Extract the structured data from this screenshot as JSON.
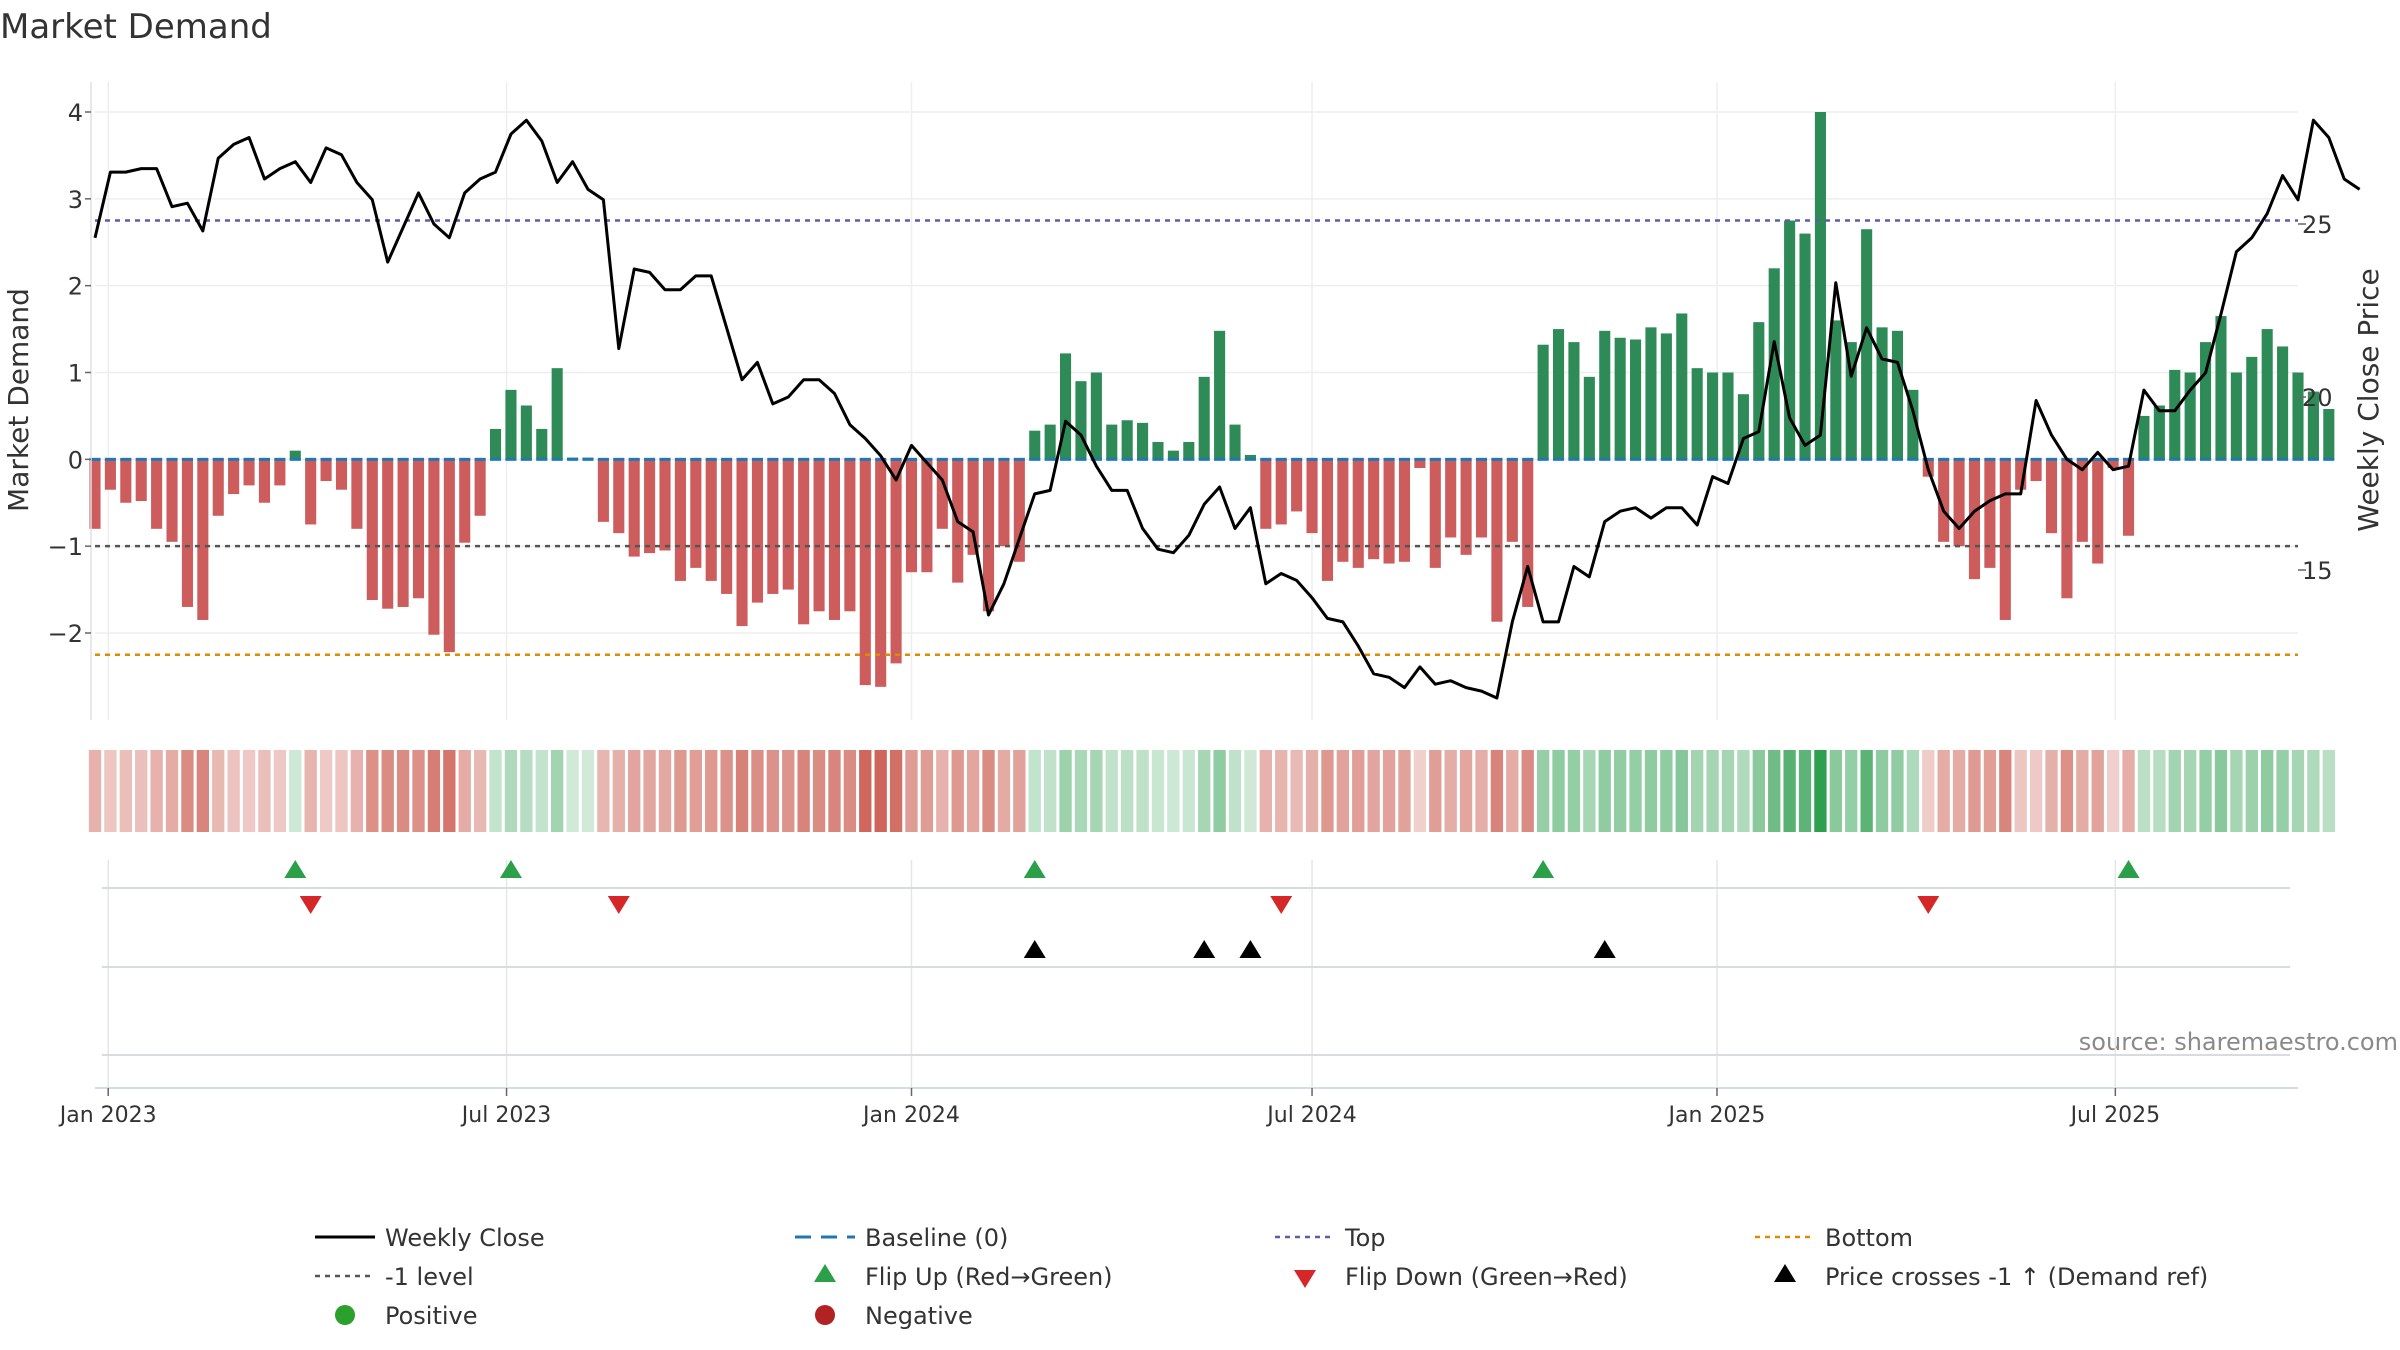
{
  "chart_data": {
    "type": "bar",
    "title": "Market Demand",
    "ylabel_left": "Market Demand",
    "ylabel_right": "Weekly Close Price",
    "source": "source: sharemaestro.com",
    "x_start": "2022-12-26",
    "x_end": "2025-09-22",
    "ylim_left": [
      -3,
      4
    ],
    "ylim_right": [
      10.5,
      28.6
    ],
    "yticks_left": [
      {
        "v": 4,
        "label": "4"
      },
      {
        "v": 3,
        "label": "3"
      },
      {
        "v": 2,
        "label": "2"
      },
      {
        "v": 1,
        "label": "1"
      },
      {
        "v": 0,
        "label": "0"
      },
      {
        "v": -1,
        "label": "−1"
      },
      {
        "v": -2,
        "label": "−2"
      }
    ],
    "yticks_right": [
      {
        "v": 25,
        "label": "25"
      },
      {
        "v": 20,
        "label": "20"
      },
      {
        "v": 15,
        "label": "15"
      }
    ],
    "xticks": [
      {
        "date": "2023-01-01",
        "label": "Jan 2023"
      },
      {
        "date": "2023-07-01",
        "label": "Jul 2023"
      },
      {
        "date": "2024-01-01",
        "label": "Jan 2024"
      },
      {
        "date": "2024-07-01",
        "label": "Jul 2024"
      },
      {
        "date": "2025-01-01",
        "label": "Jan 2025"
      },
      {
        "date": "2025-07-01",
        "label": "Jul 2025"
      }
    ],
    "levels": {
      "top": 2.75,
      "minus_one": -1,
      "bottom": -2.25,
      "baseline": 0
    },
    "colors": {
      "positive_bar": "#2e8b57",
      "negative_bar": "#cd5c5c",
      "strip_positive": "#2e9e4f",
      "strip_negative": "#c0392b",
      "price_line": "#000000",
      "top_line": "#5b5ea6",
      "minus_one_line": "#555555",
      "bottom_line": "#e08a00",
      "baseline_line": "#1f77b4",
      "flip_up": "#2ca048",
      "flip_down": "#d62728",
      "cross_marker": "#000000",
      "positive_dot": "#2ca02c",
      "negative_dot": "#b22222"
    },
    "series": [
      {
        "name": "Market Demand",
        "values": [
          -0.8,
          -0.35,
          -0.5,
          -0.48,
          -0.8,
          -0.95,
          -1.7,
          -1.85,
          -0.65,
          -0.4,
          -0.3,
          -0.5,
          -0.3,
          0.1,
          -0.75,
          -0.25,
          -0.35,
          -0.8,
          -1.62,
          -1.72,
          -1.7,
          -1.6,
          -2.02,
          -2.22,
          -0.96,
          -0.65,
          0.35,
          0.8,
          0.62,
          0.35,
          1.05,
          0.02,
          0.02,
          -0.72,
          -0.85,
          -1.12,
          -1.08,
          -1.05,
          -1.4,
          -1.25,
          -1.4,
          -1.55,
          -1.92,
          -1.65,
          -1.55,
          -1.5,
          -1.9,
          -1.75,
          -1.85,
          -1.75,
          -2.6,
          -2.62,
          -2.35,
          -1.3,
          -1.3,
          -0.8,
          -1.42,
          -1.1,
          -1.75,
          -1.0,
          -1.18,
          0.33,
          0.4,
          1.22,
          0.9,
          1.0,
          0.4,
          0.45,
          0.42,
          0.2,
          0.1,
          0.2,
          0.95,
          1.48,
          0.4,
          0.05,
          -0.8,
          -0.75,
          -0.6,
          -0.85,
          -1.4,
          -1.18,
          -1.25,
          -1.15,
          -1.2,
          -1.18,
          -0.1,
          -1.25,
          -0.9,
          -1.1,
          -0.9,
          -1.87,
          -0.95,
          -1.7,
          1.32,
          1.5,
          1.35,
          0.95,
          1.48,
          1.4,
          1.38,
          1.52,
          1.45,
          1.68,
          1.05,
          1.0,
          1.0,
          0.75,
          1.58,
          2.2,
          2.75,
          2.6,
          4.0,
          1.6,
          1.35,
          2.65,
          1.52,
          1.48,
          0.8,
          -0.2,
          -0.95,
          -1.0,
          -1.38,
          -1.25,
          -1.85,
          -0.35,
          -0.25,
          -0.85,
          -1.6,
          -0.95,
          -1.2,
          -0.1,
          -0.88,
          0.5,
          0.62,
          1.03,
          1.0,
          1.35,
          1.65,
          1.0,
          1.18,
          1.5,
          1.3,
          1.0,
          0.78,
          0.58
        ]
      },
      {
        "name": "Weekly Close",
        "values": [
          24.6,
          26.5,
          26.5,
          26.6,
          26.6,
          25.5,
          25.6,
          24.8,
          26.9,
          27.3,
          27.5,
          26.3,
          26.6,
          26.8,
          26.2,
          27.2,
          27.0,
          26.2,
          25.7,
          23.9,
          24.9,
          25.9,
          25.0,
          24.6,
          25.9,
          26.3,
          26.5,
          27.6,
          28.0,
          27.4,
          26.2,
          26.8,
          26.0,
          25.7,
          21.4,
          23.7,
          23.6,
          23.1,
          23.1,
          23.5,
          23.5,
          22.0,
          20.5,
          21.0,
          19.8,
          20.0,
          20.5,
          20.5,
          20.1,
          19.2,
          18.8,
          18.3,
          17.6,
          18.6,
          18.1,
          17.6,
          16.4,
          16.1,
          13.7,
          14.6,
          15.9,
          17.2,
          17.3,
          19.3,
          18.9,
          18.0,
          17.3,
          17.3,
          16.2,
          15.6,
          15.5,
          16.0,
          16.9,
          17.4,
          16.2,
          16.8,
          14.6,
          14.9,
          14.7,
          14.2,
          13.6,
          13.5,
          12.8,
          12.0,
          11.9,
          11.6,
          12.2,
          11.7,
          11.8,
          11.6,
          11.5,
          11.3,
          13.5,
          15.1,
          13.5,
          13.5,
          15.1,
          14.8,
          16.4,
          16.7,
          16.8,
          16.5,
          16.8,
          16.8,
          16.3,
          17.7,
          17.5,
          18.8,
          19.0,
          21.6,
          19.4,
          18.6,
          18.9,
          23.3,
          20.6,
          22.0,
          21.1,
          21.0,
          19.6,
          17.9,
          16.7,
          16.2,
          16.7,
          17.0,
          17.2,
          17.2,
          19.9,
          18.9,
          18.2,
          17.9,
          18.4,
          17.9,
          18.0,
          20.2,
          19.6,
          19.6,
          20.2,
          20.7,
          22.4,
          24.2,
          24.6,
          25.3,
          26.4,
          25.7,
          28.0,
          27.5,
          26.3,
          26.0
        ]
      }
    ],
    "flip_up_weeks": [
      13,
      27,
      61,
      94,
      132
    ],
    "flip_down_weeks": [
      14,
      34,
      77,
      119
    ],
    "cross_weeks": [
      61,
      72,
      75,
      98
    ],
    "legend": [
      {
        "label": "Weekly Close",
        "kind": "line-solid"
      },
      {
        "label": "Baseline (0)",
        "kind": "line-dash"
      },
      {
        "label": "Top",
        "kind": "line-dot-top"
      },
      {
        "label": "Bottom",
        "kind": "line-dot-bottom"
      },
      {
        "label": "-1 level",
        "kind": "line-dot-minus"
      },
      {
        "label": "Flip Up (Red→Green)",
        "kind": "tri-up-green"
      },
      {
        "label": "Flip Down (Green→Red)",
        "kind": "tri-down-red"
      },
      {
        "label": "Price crosses -1 ↑ (Demand ref)",
        "kind": "tri-up-black"
      },
      {
        "label": "Positive",
        "kind": "dot-green"
      },
      {
        "label": "Negative",
        "kind": "dot-red"
      }
    ]
  }
}
